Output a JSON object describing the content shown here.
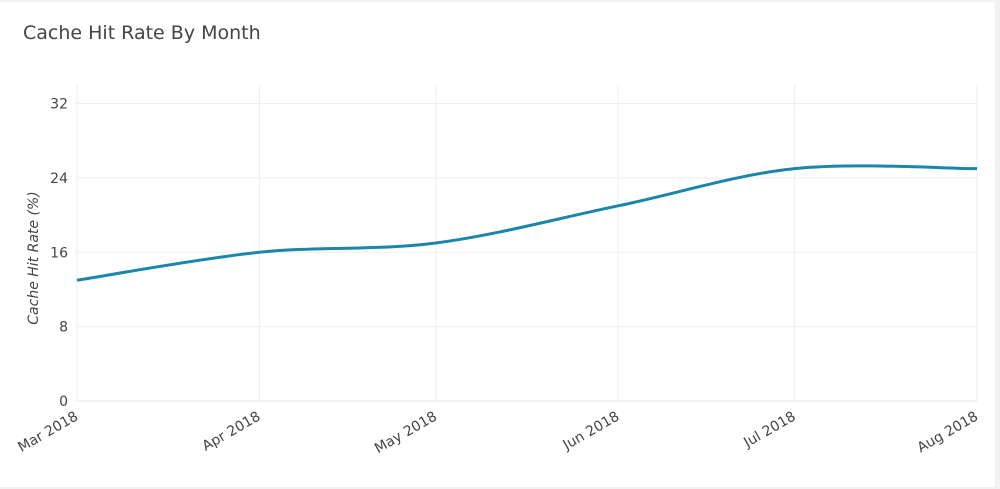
{
  "chart_data": {
    "type": "line",
    "title": "Cache Hit Rate By Month",
    "xlabel": "",
    "ylabel": "Cache Hit Rate (%)",
    "categories": [
      "Mar 2018",
      "Apr 2018",
      "May 2018",
      "Jun 2018",
      "Jul 2018",
      "Aug 2018"
    ],
    "series": [
      {
        "name": "Cache Hit Rate",
        "values": [
          13,
          16,
          17,
          21,
          25,
          25
        ],
        "color": "#1a87a9"
      }
    ],
    "ylim": [
      0,
      34
    ],
    "yticks": [
      0,
      8,
      16,
      24,
      32
    ],
    "grid": true,
    "legend": "none",
    "line_shape": "spline"
  }
}
